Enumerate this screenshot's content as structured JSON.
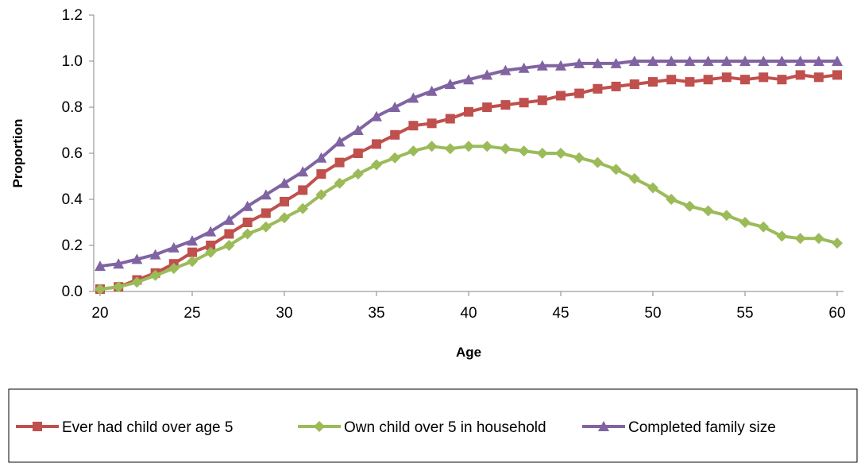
{
  "chart_data": {
    "type": "line",
    "xlabel": "Age",
    "ylabel": "Proportion",
    "xlim": [
      20,
      60
    ],
    "ylim": [
      0,
      1.2
    ],
    "xticks": [
      "20",
      "25",
      "30",
      "35",
      "40",
      "45",
      "50",
      "55",
      "60"
    ],
    "yticks": [
      "0.0",
      "0.2",
      "0.4",
      "0.6",
      "0.8",
      "1.0",
      "1.2"
    ],
    "grid": false,
    "legend_position": "bottom",
    "x": [
      20,
      21,
      22,
      23,
      24,
      25,
      26,
      27,
      28,
      29,
      30,
      31,
      32,
      33,
      34,
      35,
      36,
      37,
      38,
      39,
      40,
      41,
      42,
      43,
      44,
      45,
      46,
      47,
      48,
      49,
      50,
      51,
      52,
      53,
      54,
      55,
      56,
      57,
      58,
      59,
      60
    ],
    "series": [
      {
        "name": "Ever had child over age 5",
        "color": "#C0504D",
        "marker": "square",
        "values": [
          0.01,
          0.02,
          0.05,
          0.08,
          0.12,
          0.17,
          0.2,
          0.25,
          0.3,
          0.34,
          0.39,
          0.44,
          0.51,
          0.56,
          0.6,
          0.64,
          0.68,
          0.72,
          0.73,
          0.75,
          0.78,
          0.8,
          0.81,
          0.82,
          0.83,
          0.85,
          0.86,
          0.88,
          0.89,
          0.9,
          0.91,
          0.92,
          0.91,
          0.92,
          0.93,
          0.92,
          0.93,
          0.92,
          0.94,
          0.93,
          0.94
        ]
      },
      {
        "name": "Own child over 5 in household",
        "color": "#9BBB59",
        "marker": "diamond",
        "values": [
          0.01,
          0.02,
          0.04,
          0.07,
          0.1,
          0.13,
          0.17,
          0.2,
          0.25,
          0.28,
          0.32,
          0.36,
          0.42,
          0.47,
          0.51,
          0.55,
          0.58,
          0.61,
          0.63,
          0.62,
          0.63,
          0.63,
          0.62,
          0.61,
          0.6,
          0.6,
          0.58,
          0.56,
          0.53,
          0.49,
          0.45,
          0.4,
          0.37,
          0.35,
          0.33,
          0.3,
          0.28,
          0.24,
          0.23,
          0.23,
          0.21
        ]
      },
      {
        "name": "Completed family size",
        "color": "#8064A2",
        "marker": "triangle",
        "values": [
          0.11,
          0.12,
          0.14,
          0.16,
          0.19,
          0.22,
          0.26,
          0.31,
          0.37,
          0.42,
          0.47,
          0.52,
          0.58,
          0.65,
          0.7,
          0.76,
          0.8,
          0.84,
          0.87,
          0.9,
          0.92,
          0.94,
          0.96,
          0.97,
          0.98,
          0.98,
          0.99,
          0.99,
          0.99,
          1.0,
          1.0,
          1.0,
          1.0,
          1.0,
          1.0,
          1.0,
          1.0,
          1.0,
          1.0,
          1.0,
          1.0
        ]
      }
    ]
  }
}
